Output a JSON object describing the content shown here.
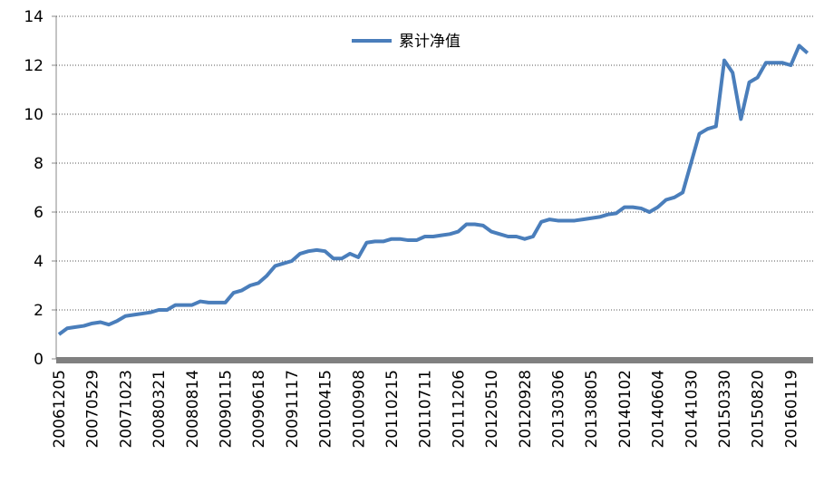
{
  "chart_data": {
    "type": "line",
    "categories": [
      "20061205",
      null,
      null,
      null,
      "20070529",
      null,
      null,
      null,
      "20071023",
      null,
      null,
      null,
      "20080321",
      null,
      null,
      null,
      "20080814",
      null,
      null,
      null,
      "20090115",
      null,
      null,
      null,
      "20090618",
      null,
      null,
      null,
      "20091117",
      null,
      null,
      null,
      "20100415",
      null,
      null,
      null,
      "20100908",
      null,
      null,
      null,
      "20110215",
      null,
      null,
      null,
      "20110711",
      null,
      null,
      null,
      "20111206",
      null,
      null,
      null,
      "20120510",
      null,
      null,
      null,
      "20120928",
      null,
      null,
      null,
      "20130306",
      null,
      null,
      null,
      "20130805",
      null,
      null,
      null,
      "20140102",
      null,
      null,
      null,
      "20140604",
      null,
      null,
      null,
      "20141030",
      null,
      null,
      null,
      "20150330",
      null,
      null,
      null,
      "20150820",
      null,
      null,
      null,
      "20160119",
      null,
      null
    ],
    "series": [
      {
        "name": "累计净值",
        "color": "#4a7ebb",
        "values": [
          1.0,
          1.25,
          1.3,
          1.35,
          1.45,
          1.5,
          1.4,
          1.55,
          1.75,
          1.8,
          1.85,
          1.9,
          2.0,
          2.0,
          2.2,
          2.2,
          2.2,
          2.35,
          2.3,
          2.3,
          2.3,
          2.7,
          2.8,
          3.0,
          3.1,
          3.4,
          3.8,
          3.9,
          4.0,
          4.3,
          4.4,
          4.45,
          4.4,
          4.1,
          4.1,
          4.3,
          4.15,
          4.75,
          4.8,
          4.8,
          4.9,
          4.9,
          4.85,
          4.85,
          5.0,
          5.0,
          5.05,
          5.1,
          5.2,
          5.5,
          5.5,
          5.45,
          5.2,
          5.1,
          5.0,
          5.0,
          4.9,
          5.0,
          5.6,
          5.7,
          5.65,
          5.65,
          5.65,
          5.7,
          5.75,
          5.8,
          5.9,
          5.95,
          6.2,
          6.2,
          6.15,
          6.0,
          6.2,
          6.5,
          6.6,
          6.8,
          8.0,
          9.2,
          9.4,
          9.5,
          12.2,
          11.7,
          9.8,
          11.3,
          11.5,
          12.1,
          12.1,
          12.1,
          12.0,
          12.8,
          12.5
        ]
      }
    ],
    "ylim": [
      0,
      14
    ],
    "yticks": [
      0,
      2,
      4,
      6,
      8,
      10,
      12,
      14
    ],
    "grid": true
  }
}
